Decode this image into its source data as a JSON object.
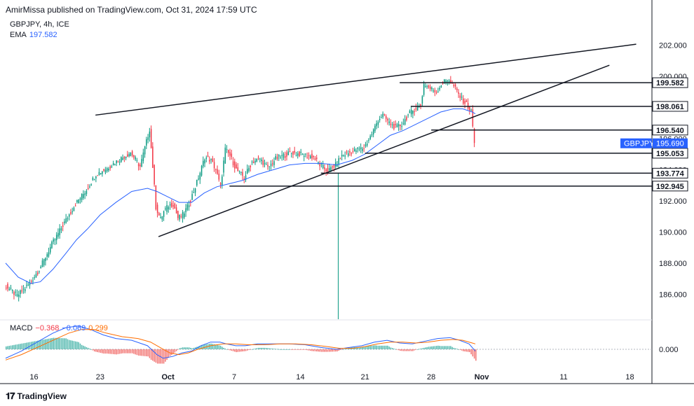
{
  "header": {
    "publisher_line": "AmirMissa published on TradingView.com, Oct 31, 2024 17:59 UTC"
  },
  "legend": {
    "symbol": "GBPJPY, 4h, ICE",
    "ema_label": "EMA",
    "ema_value": "197.582",
    "macd_label": "MACD",
    "macd_v1": "−0.368",
    "macd_v2": "−0.069",
    "macd_v3": "0.299"
  },
  "footer": {
    "brand": "TradingView"
  },
  "colors": {
    "up": "#089981",
    "down": "#f23645",
    "ema": "#2962ff",
    "signal": "#ff6d00",
    "text": "#131722",
    "grid": "#e0e3eb",
    "badge": "#2962ff"
  },
  "chart_data": {
    "type": "candlestick",
    "title": "GBPJPY, 4h, ICE",
    "price_ticks": [
      "186.000",
      "188.000",
      "190.000",
      "192.000",
      "194.000",
      "196.000",
      "198.000",
      "200.000",
      "202.000"
    ],
    "price_tick_values": [
      186,
      188,
      190,
      192,
      194,
      196,
      198,
      200,
      202
    ],
    "ylim": [
      184.4,
      203.9
    ],
    "x_labels": [
      "16",
      "23",
      "Oct",
      "7",
      "14",
      "21",
      "28",
      "Nov",
      "11",
      "18"
    ],
    "x_label_bars": [
      18,
      60,
      103,
      145,
      187,
      228,
      270,
      302,
      354,
      396
    ],
    "bar_count": 410,
    "levels": [
      {
        "label": "199.582",
        "value": 199.582,
        "from_bar": 250
      },
      {
        "label": "198.061",
        "value": 198.061,
        "from_bar": 257
      },
      {
        "label": "196.540",
        "value": 196.54,
        "from_bar": 270
      },
      {
        "label": "195.053",
        "value": 195.053,
        "from_bar": 228
      },
      {
        "label": "193.774",
        "value": 193.774,
        "from_bar": 200
      },
      {
        "label": "192.945",
        "value": 192.945,
        "from_bar": 142
      }
    ],
    "current_price": {
      "symbol": "GBPJPY",
      "value": 195.69,
      "label": "195.690"
    },
    "trendlines": [
      {
        "name": "upper-channel",
        "from": [
          57,
          197.5
        ],
        "to": [
          400,
          202.05
        ]
      },
      {
        "name": "lower-channel",
        "from": [
          97,
          189.7
        ],
        "to": [
          383,
          200.7
        ]
      }
    ],
    "vertical_marker_bar": 211,
    "price_path": [
      [
        0,
        186.6
      ],
      [
        8,
        185.9
      ],
      [
        16,
        186.7
      ],
      [
        22,
        187.6
      ],
      [
        30,
        189.2
      ],
      [
        38,
        190.6
      ],
      [
        45,
        191.8
      ],
      [
        52,
        192.7
      ],
      [
        58,
        193.7
      ],
      [
        65,
        194.1
      ],
      [
        72,
        194.6
      ],
      [
        80,
        195.1
      ],
      [
        86,
        194.2
      ],
      [
        92,
        196.6
      ],
      [
        94,
        194.2
      ],
      [
        96,
        191.6
      ],
      [
        99,
        190.8
      ],
      [
        101,
        191.3
      ],
      [
        104,
        191.7
      ],
      [
        107,
        191.8
      ],
      [
        110,
        190.9
      ],
      [
        113,
        191.1
      ],
      [
        116,
        191.6
      ],
      [
        120,
        192.6
      ],
      [
        124,
        193.8
      ],
      [
        127,
        194.8
      ],
      [
        131,
        194.6
      ],
      [
        134,
        194.0
      ],
      [
        137,
        192.9
      ],
      [
        140,
        195.3
      ],
      [
        143,
        194.9
      ],
      [
        147,
        194.0
      ],
      [
        152,
        193.5
      ],
      [
        157,
        194.5
      ],
      [
        162,
        194.7
      ],
      [
        167,
        194.1
      ],
      [
        172,
        194.7
      ],
      [
        177,
        194.9
      ],
      [
        182,
        195.1
      ],
      [
        187,
        195.0
      ],
      [
        192,
        194.9
      ],
      [
        196,
        194.8
      ],
      [
        200,
        194.3
      ],
      [
        205,
        193.9
      ],
      [
        210,
        194.3
      ],
      [
        214,
        194.9
      ],
      [
        219,
        195.1
      ],
      [
        224,
        195.3
      ],
      [
        228,
        195.4
      ],
      [
        233,
        196.3
      ],
      [
        237,
        197.2
      ],
      [
        240,
        197.5
      ],
      [
        244,
        197.0
      ],
      [
        248,
        196.7
      ],
      [
        252,
        196.9
      ],
      [
        256,
        197.5
      ],
      [
        260,
        197.9
      ],
      [
        264,
        198.1
      ],
      [
        266,
        199.5
      ],
      [
        270,
        199.2
      ],
      [
        274,
        199.0
      ],
      [
        278,
        199.6
      ],
      [
        282,
        199.8
      ],
      [
        286,
        199.2
      ],
      [
        290,
        198.5
      ],
      [
        293,
        198.2
      ],
      [
        296,
        197.7
      ],
      [
        297,
        196.8
      ],
      [
        298,
        195.69
      ]
    ],
    "ema_path": [
      [
        0,
        188.0
      ],
      [
        8,
        187.1
      ],
      [
        16,
        186.7
      ],
      [
        22,
        186.8
      ],
      [
        30,
        187.6
      ],
      [
        38,
        188.6
      ],
      [
        45,
        189.5
      ],
      [
        52,
        190.2
      ],
      [
        60,
        191.1
      ],
      [
        70,
        191.9
      ],
      [
        80,
        192.6
      ],
      [
        90,
        192.8
      ],
      [
        96,
        192.6
      ],
      [
        102,
        192.3
      ],
      [
        110,
        191.9
      ],
      [
        118,
        191.9
      ],
      [
        126,
        192.5
      ],
      [
        134,
        192.9
      ],
      [
        142,
        193.1
      ],
      [
        150,
        193.3
      ],
      [
        160,
        193.7
      ],
      [
        170,
        194.0
      ],
      [
        180,
        194.3
      ],
      [
        190,
        194.4
      ],
      [
        200,
        194.4
      ],
      [
        210,
        194.3
      ],
      [
        220,
        194.6
      ],
      [
        228,
        195.0
      ],
      [
        236,
        195.6
      ],
      [
        244,
        196.2
      ],
      [
        252,
        196.5
      ],
      [
        260,
        196.9
      ],
      [
        268,
        197.3
      ],
      [
        276,
        197.7
      ],
      [
        284,
        197.9
      ],
      [
        290,
        197.9
      ],
      [
        296,
        197.7
      ],
      [
        298,
        197.582
      ]
    ],
    "macd": {
      "zero_label": "0.000",
      "ylim": [
        -0.9,
        1.6
      ],
      "macd_path": [
        [
          0,
          -0.5
        ],
        [
          10,
          -0.1
        ],
        [
          20,
          0.4
        ],
        [
          30,
          0.9
        ],
        [
          38,
          1.2
        ],
        [
          46,
          1.3
        ],
        [
          54,
          1.1
        ],
        [
          62,
          0.8
        ],
        [
          70,
          0.6
        ],
        [
          80,
          0.5
        ],
        [
          90,
          0.2
        ],
        [
          96,
          -0.3
        ],
        [
          100,
          -0.5
        ],
        [
          106,
          -0.4
        ],
        [
          112,
          -0.2
        ],
        [
          118,
          -0.1
        ],
        [
          124,
          0.2
        ],
        [
          130,
          0.4
        ],
        [
          136,
          0.4
        ],
        [
          140,
          0.3
        ],
        [
          146,
          0.2
        ],
        [
          152,
          0.2
        ],
        [
          160,
          0.3
        ],
        [
          170,
          0.3
        ],
        [
          180,
          0.3
        ],
        [
          190,
          0.25
        ],
        [
          200,
          0.1
        ],
        [
          210,
          0.0
        ],
        [
          218,
          0.1
        ],
        [
          226,
          0.2
        ],
        [
          234,
          0.4
        ],
        [
          242,
          0.5
        ],
        [
          250,
          0.35
        ],
        [
          258,
          0.3
        ],
        [
          266,
          0.45
        ],
        [
          274,
          0.6
        ],
        [
          282,
          0.65
        ],
        [
          288,
          0.5
        ],
        [
          294,
          0.3
        ],
        [
          298,
          -0.1
        ]
      ],
      "signal_path": [
        [
          0,
          -0.6
        ],
        [
          10,
          -0.3
        ],
        [
          20,
          0.1
        ],
        [
          30,
          0.5
        ],
        [
          40,
          0.9
        ],
        [
          48,
          1.1
        ],
        [
          56,
          1.1
        ],
        [
          64,
          0.9
        ],
        [
          74,
          0.7
        ],
        [
          84,
          0.6
        ],
        [
          92,
          0.4
        ],
        [
          98,
          0.1
        ],
        [
          104,
          -0.2
        ],
        [
          110,
          -0.3
        ],
        [
          116,
          -0.2
        ],
        [
          122,
          0.0
        ],
        [
          130,
          0.2
        ],
        [
          138,
          0.3
        ],
        [
          146,
          0.3
        ],
        [
          154,
          0.25
        ],
        [
          164,
          0.25
        ],
        [
          174,
          0.3
        ],
        [
          184,
          0.3
        ],
        [
          194,
          0.25
        ],
        [
          204,
          0.15
        ],
        [
          212,
          0.05
        ],
        [
          220,
          0.05
        ],
        [
          228,
          0.15
        ],
        [
          236,
          0.3
        ],
        [
          244,
          0.4
        ],
        [
          252,
          0.4
        ],
        [
          260,
          0.35
        ],
        [
          268,
          0.4
        ],
        [
          276,
          0.5
        ],
        [
          284,
          0.55
        ],
        [
          290,
          0.5
        ],
        [
          296,
          0.35
        ],
        [
          298,
          0.299
        ]
      ]
    }
  }
}
